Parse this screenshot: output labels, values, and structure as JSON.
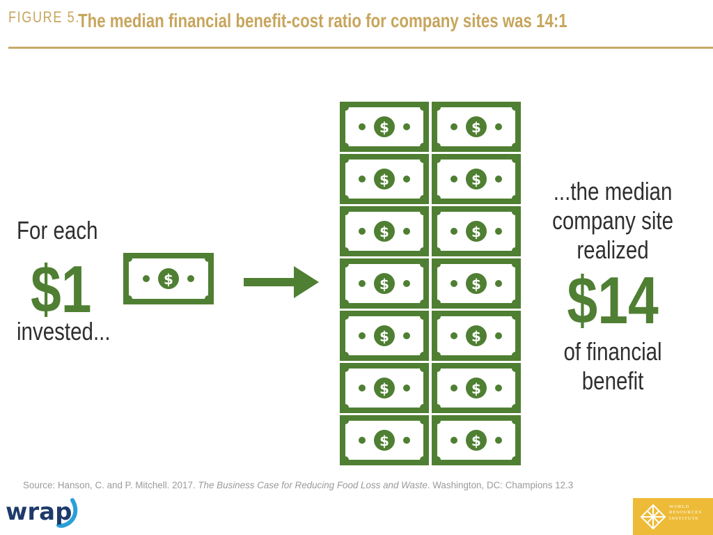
{
  "header": {
    "figure_label": "FIGURE 5.",
    "title": "The median financial benefit-cost ratio for company sites was 14:1"
  },
  "left": {
    "line1": "For each",
    "amount": "$1",
    "line2": "invested..."
  },
  "right": {
    "line1": "...the median",
    "line2": "company site",
    "line3": "realized",
    "amount": "$14",
    "line4": "of financial",
    "line5": "benefit"
  },
  "graphic": {
    "bill_symbol": "$",
    "bills_invested": 1,
    "bills_realized": 14,
    "icons": [
      "dollar-bill-icon",
      "right-arrow-icon"
    ]
  },
  "source": {
    "prefix": "Source: Hanson, C. and P. Mitchell. 2017. ",
    "title": "The Business Case for Reducing Food Loss and Waste",
    "suffix": ". Washington, DC: Champions 12.3"
  },
  "logos": {
    "wrap": "wrap",
    "wri_lines": [
      "WORLD",
      "RESOURCES",
      "INSTITUTE"
    ]
  },
  "colors": {
    "green": "#4f7f32",
    "gold": "#c7a55c",
    "text": "#2f2f2f",
    "wrap_navy": "#1d3a6b",
    "wrap_blue": "#2a9fd8",
    "wri_yellow": "#eebb38"
  }
}
